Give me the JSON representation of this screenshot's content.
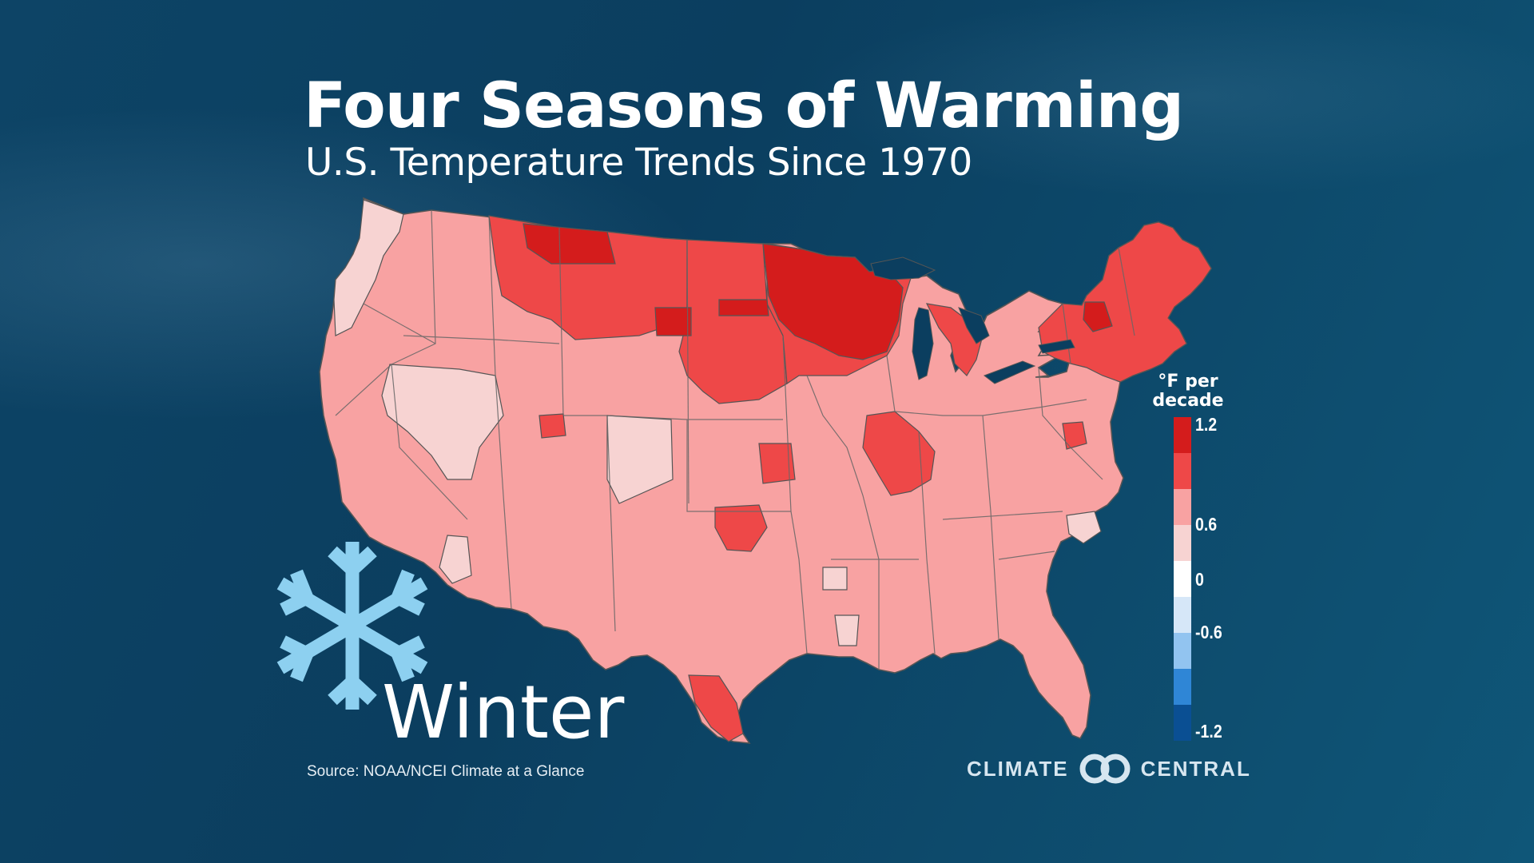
{
  "title": "Four Seasons of Warming",
  "subtitle": "U.S. Temperature Trends Since 1970",
  "season": "Winter",
  "source": "Source:  NOAA/NCEI Climate at a Glance",
  "logo": {
    "left": "CLIMATE",
    "right": "CENTRAL"
  },
  "icons": {
    "season_icon": "snowflake-icon",
    "logo_icon": "climate-central-logo-icon"
  },
  "legend": {
    "title": "°F per decade",
    "title_line1": "°F per",
    "title_line2": "decade",
    "ticks": [
      "1.2",
      "0.6",
      "0",
      "-0.6",
      "-1.2"
    ],
    "colors": [
      "#d41c1c",
      "#ee4848",
      "#f8a2a2",
      "#f7d3d2",
      "#ffffff",
      "#d6e7f8",
      "#92c4f0",
      "#2f86d6",
      "#0a4f93"
    ]
  },
  "colors": {
    "background": "#0b3e5f",
    "snowflake": "#8dd0f0",
    "state_border": "#666666"
  },
  "map": {
    "description_scale": "Climate division warming trends, winter",
    "scale_classes": {
      "very_high": "#d41c1c",
      "high": "#ee4848",
      "moderate": "#f8a2a2",
      "low": "#f7d3d2"
    }
  }
}
